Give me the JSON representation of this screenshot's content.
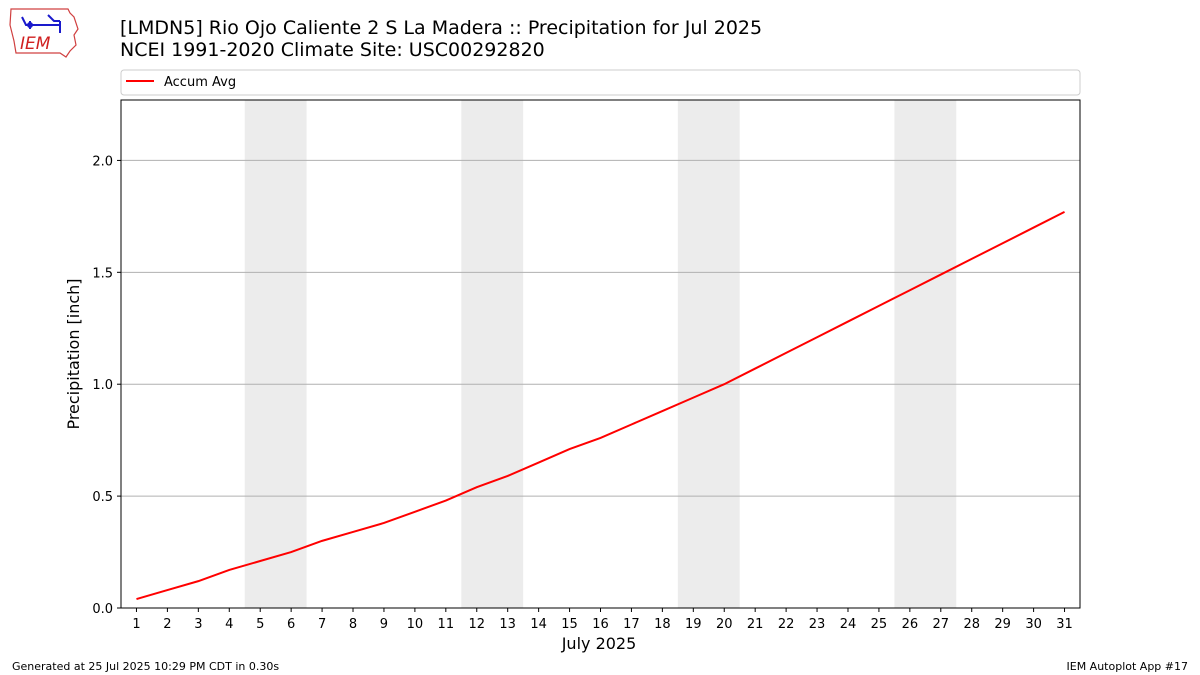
{
  "header": {
    "title": "[LMDN5] Rio Ojo Caliente 2 S La Madera :: Precipitation for Jul 2025",
    "subtitle": "NCEI 1991-2020 Climate Site: USC00292820"
  },
  "logo": {
    "text": "IEM"
  },
  "footer": {
    "generated": "Generated at 25 Jul 2025 10:29 PM CDT in 0.30s",
    "app": "IEM Autoplot App #17"
  },
  "chart_data": {
    "type": "line",
    "xlabel": "July 2025",
    "ylabel": "Precipitation [inch]",
    "x": [
      "1",
      "2",
      "3",
      "4",
      "5",
      "6",
      "7",
      "8",
      "9",
      "10",
      "11",
      "12",
      "13",
      "14",
      "15",
      "16",
      "17",
      "18",
      "19",
      "20",
      "21",
      "22",
      "23",
      "24",
      "25",
      "26",
      "27",
      "28",
      "29",
      "30",
      "31"
    ],
    "xlim": [
      0.5,
      31.5
    ],
    "ylim": [
      0,
      2.27
    ],
    "yticks": [
      "0.0",
      "0.5",
      "1.0",
      "1.5",
      "2.0"
    ],
    "grid": "horizontal",
    "legend_position": "top",
    "weekend_shading": [
      [
        5,
        6
      ],
      [
        12,
        13
      ],
      [
        19,
        20
      ],
      [
        26,
        27
      ]
    ],
    "shading_color": "#ececec",
    "series": [
      {
        "name": "Accum Avg",
        "color": "#ff0000",
        "values": [
          0.04,
          0.08,
          0.12,
          0.17,
          0.21,
          0.25,
          0.3,
          0.34,
          0.38,
          0.43,
          0.48,
          0.54,
          0.59,
          0.65,
          0.71,
          0.76,
          0.82,
          0.88,
          0.94,
          1.0,
          1.07,
          1.14,
          1.21,
          1.28,
          1.35,
          1.42,
          1.49,
          1.56,
          1.63,
          1.7,
          1.77
        ]
      }
    ]
  }
}
